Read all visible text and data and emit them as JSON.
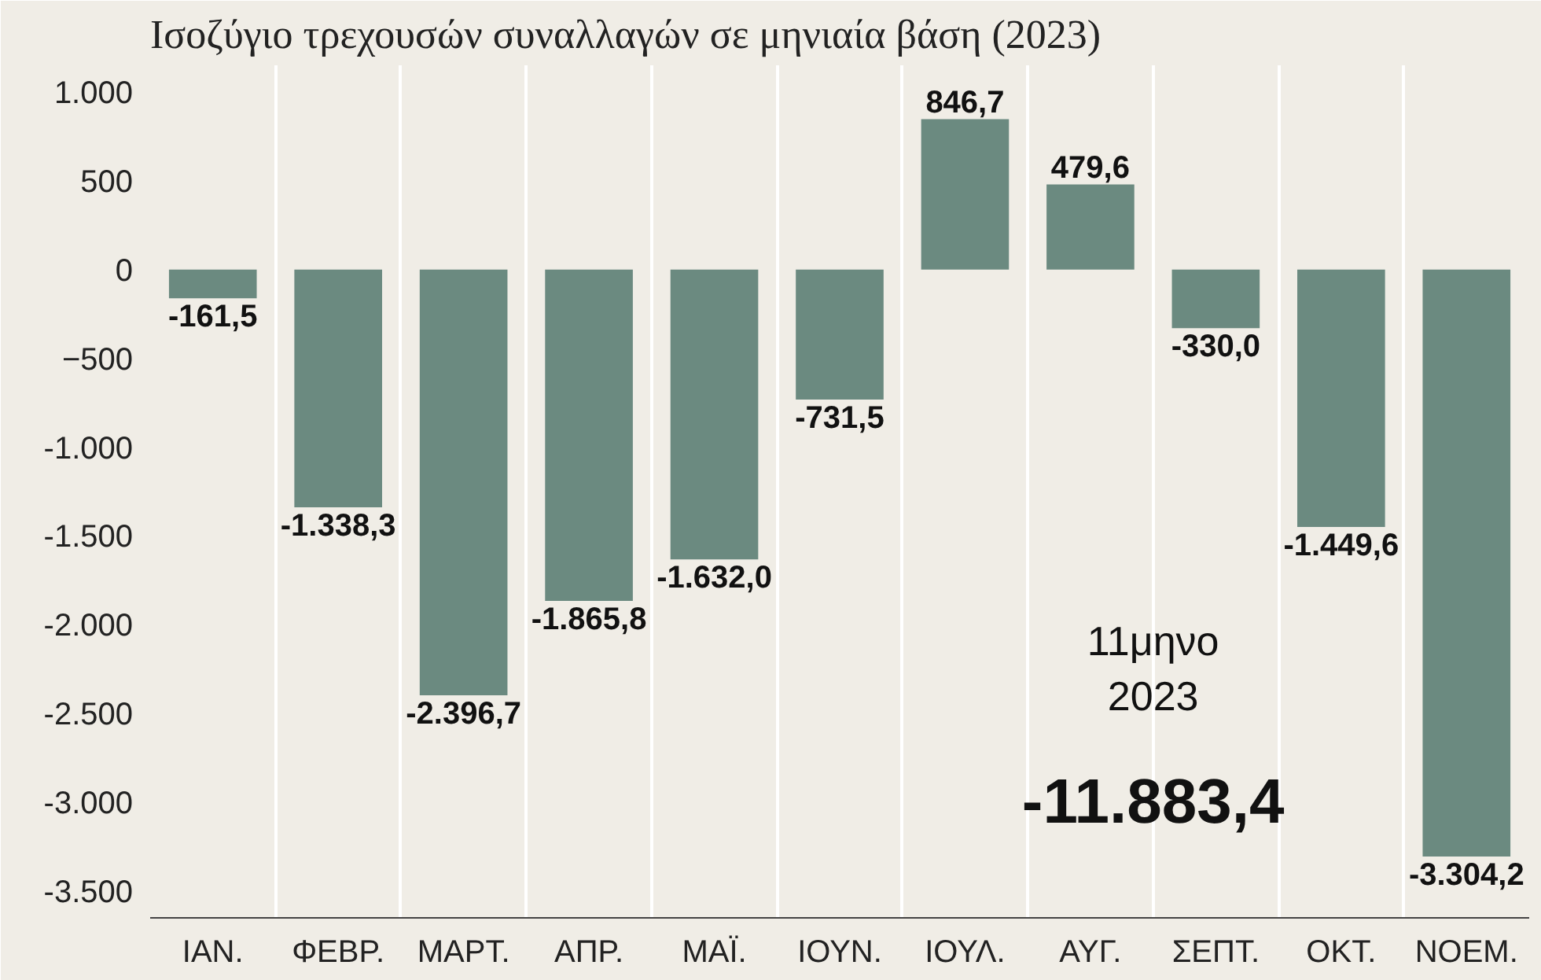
{
  "chart_data": {
    "type": "bar",
    "title": "Ισοζύγιο τρεχουσών συναλλαγών σε μηνιαία βάση (2023)",
    "categories": [
      "ΙΑΝ.",
      "ΦΕΒΡ.",
      "ΜΑΡΤ.",
      "ΑΠΡ.",
      "ΜΑΪ.",
      "ΙΟΥΝ.",
      "ΙΟΥΛ.",
      "ΑΥΓ.",
      "ΣΕΠΤ.",
      "ΟΚΤ.",
      "ΝΟΕΜ."
    ],
    "values": [
      -161.5,
      -1338.3,
      -2396.7,
      -1865.8,
      -1632.0,
      -731.5,
      846.7,
      479.6,
      -330.0,
      -1449.6,
      -3304.2
    ],
    "value_labels": [
      "-161,5",
      "-1.338,3",
      "-2.396,7",
      "-1.865,8",
      "-1.632,0",
      "-731,5",
      "846,7",
      "479,6",
      "-330,0",
      "-1.449,6",
      "-3.304,2"
    ],
    "color": "#6b8a80",
    "ylim": [
      -3650,
      1150
    ],
    "yticks": [
      {
        "value": 1000,
        "label": "1.000"
      },
      500,
      0,
      -500,
      {
        "value": -1000,
        "label": "-1.000"
      },
      {
        "value": -1500,
        "label": "-1.500"
      },
      {
        "value": -2000,
        "label": "-2.000"
      },
      {
        "value": -2500,
        "label": "-2.500"
      },
      {
        "value": -3000,
        "label": "-3.000"
      },
      {
        "value": -3500,
        "label": "-3.500"
      }
    ],
    "grid": "x",
    "annotations": [
      "11μηνο",
      "2023",
      "-11.883,4"
    ]
  }
}
